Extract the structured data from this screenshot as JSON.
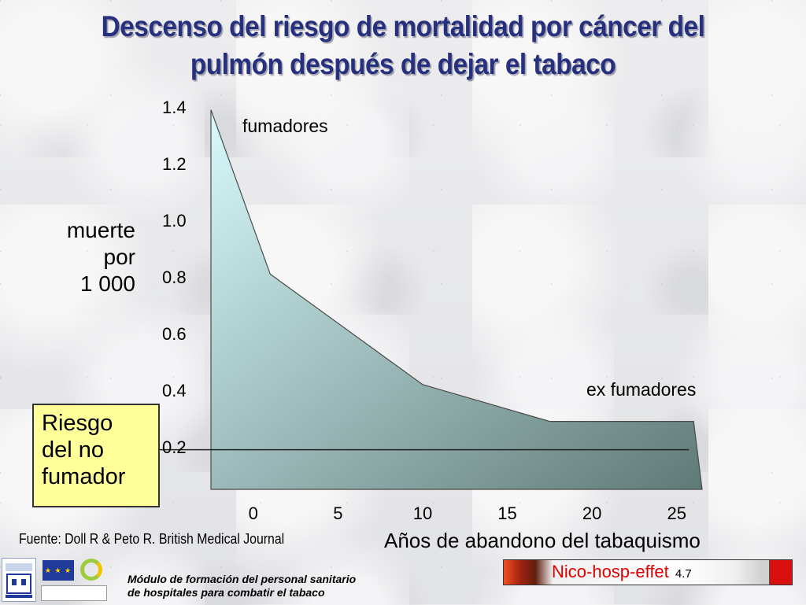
{
  "title": {
    "line1": "Descenso del riesgo de mortalidad por cáncer del",
    "line2": "pulmón después de dejar el tabaco"
  },
  "chart_data": {
    "type": "area",
    "title": "Descenso del riesgo de mortalidad por cáncer del pulmón después de dejar el tabaco",
    "ylabel_lines": [
      "muerte",
      "por",
      "1 000"
    ],
    "xlabel": "Años de abandono del tabaquismo",
    "x_ticks": [
      "0",
      "5",
      "10",
      "15",
      "20",
      "25"
    ],
    "y_ticks": [
      "0.2",
      "0.4",
      "0.6",
      "0.8",
      "1.0",
      "1.2",
      "1.4"
    ],
    "ylim": [
      0.05,
      1.4
    ],
    "xlim": [
      -2.5,
      26.5
    ],
    "series": [
      {
        "x": [
          -2.5,
          1,
          10,
          17.5,
          26
        ],
        "values": [
          1.39,
          0.81,
          0.42,
          0.29,
          0.29
        ]
      }
    ],
    "reference_line": {
      "y": 0.19
    },
    "annotations": {
      "smokers": "fumadores",
      "ex_smokers": "ex fumadores",
      "nonsmoker_risk": [
        "Riesgo",
        "del no",
        "fumador"
      ]
    },
    "fill_gradient": [
      "#d8fafc",
      "#5f7a76"
    ],
    "grid": false
  },
  "source": "Fuente: Doll R & Peto R.  British Medical Journal",
  "footer": {
    "module_line1": "Módulo de formación del personal sanitario",
    "module_line2": "de hospitales  para combatir el tabaco",
    "brand": "Nico-hosp-effet",
    "slide_number": "4.7",
    "eu_logo_text": "★ ★ ★"
  },
  "colors": {
    "title": "#27307f",
    "nonsmoker_box": "#ffff99",
    "brand_red": "#e00000"
  }
}
